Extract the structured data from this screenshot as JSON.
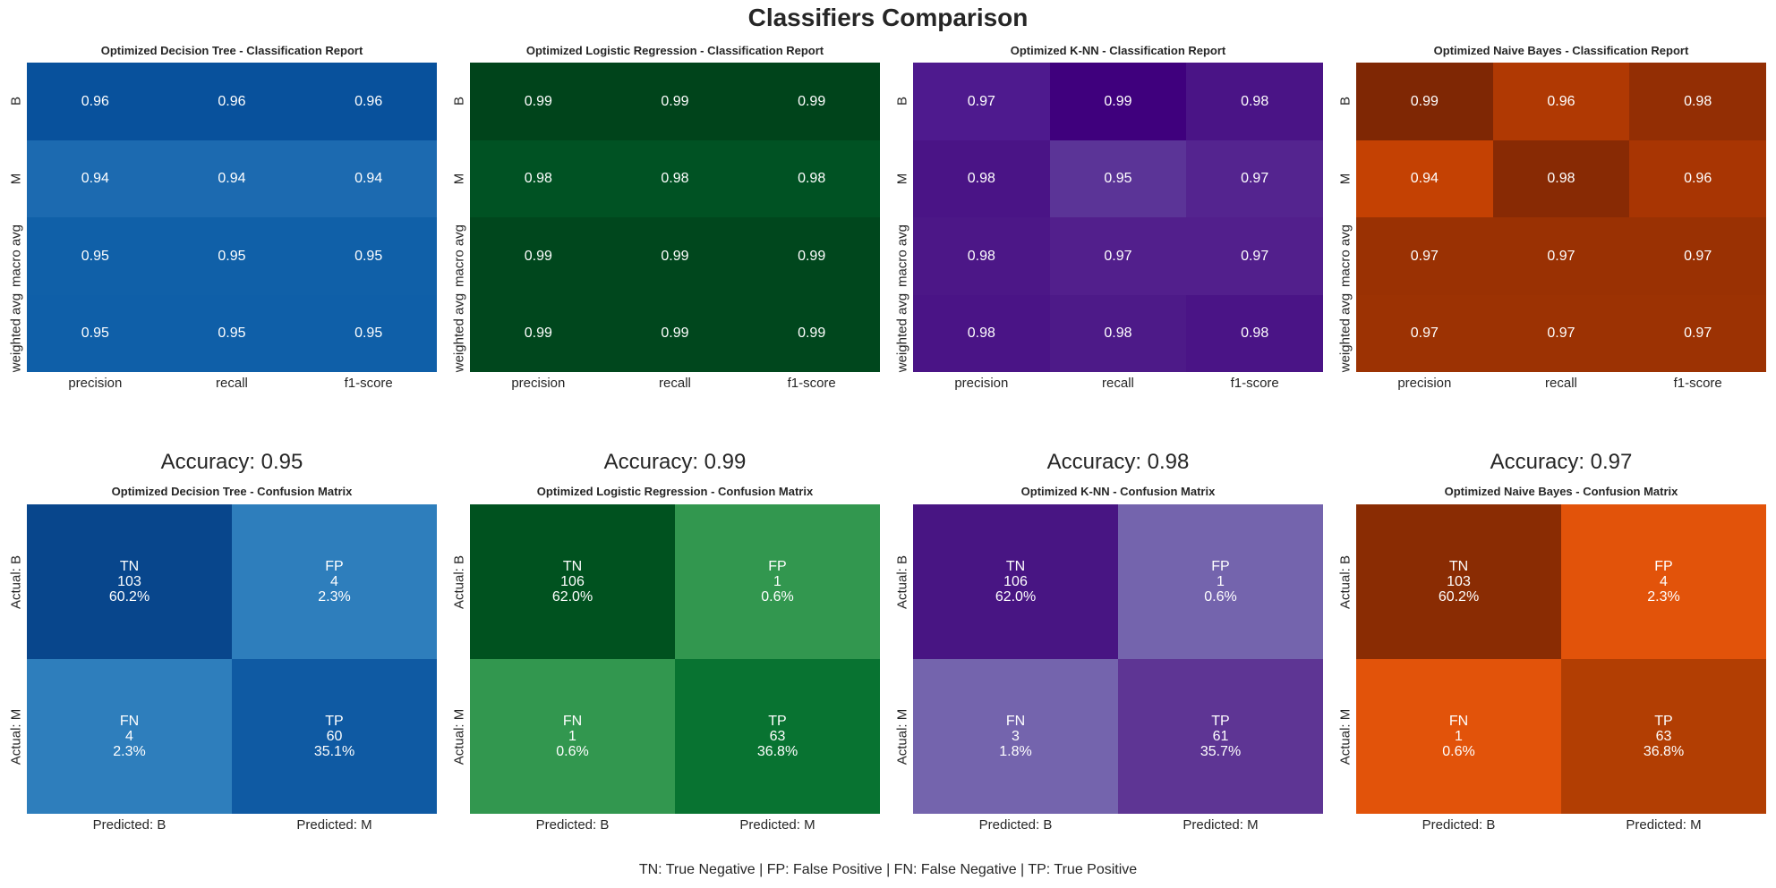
{
  "title": "Classifiers Comparison",
  "footer": "TN: True Negative | FP: False Positive | FN: False Negative | TP: True Positive",
  "chart_data": [
    {
      "type": "heatmap",
      "title": "Optimized Decision Tree - Classification Report",
      "x_labels": [
        "precision",
        "recall",
        "f1-score"
      ],
      "y_labels": [
        "B",
        "M",
        "macro avg",
        "weighted avg"
      ],
      "values": [
        [
          0.96,
          0.96,
          0.96
        ],
        [
          0.94,
          0.94,
          0.94
        ],
        [
          0.95,
          0.95,
          0.95
        ],
        [
          0.95,
          0.95,
          0.95
        ]
      ],
      "colors": [
        [
          "#08519c",
          "#08519c",
          "#08519c"
        ],
        [
          "#1c6ab0",
          "#1c6ab0",
          "#1c6ab0"
        ],
        [
          "#1060a8",
          "#1060a8",
          "#1060a8"
        ],
        [
          "#0f5fa8",
          "#0f5fa8",
          "#0f5fa8"
        ]
      ]
    },
    {
      "type": "heatmap",
      "title": "Optimized Logistic Regression - Classification Report",
      "x_labels": [
        "precision",
        "recall",
        "f1-score"
      ],
      "y_labels": [
        "B",
        "M",
        "macro avg",
        "weighted avg"
      ],
      "values": [
        [
          0.99,
          0.99,
          0.99
        ],
        [
          0.98,
          0.98,
          0.98
        ],
        [
          0.99,
          0.99,
          0.99
        ],
        [
          0.99,
          0.99,
          0.99
        ]
      ],
      "colors": [
        [
          "#00441b",
          "#00441b",
          "#00441b"
        ],
        [
          "#005223",
          "#005223",
          "#005223"
        ],
        [
          "#00471d",
          "#00471d",
          "#00471d"
        ],
        [
          "#00471d",
          "#00471d",
          "#00471d"
        ]
      ]
    },
    {
      "type": "heatmap",
      "title": "Optimized K-NN - Classification Report",
      "x_labels": [
        "precision",
        "recall",
        "f1-score"
      ],
      "y_labels": [
        "B",
        "M",
        "macro avg",
        "weighted avg"
      ],
      "values": [
        [
          0.97,
          0.99,
          0.98
        ],
        [
          0.98,
          0.95,
          0.97
        ],
        [
          0.98,
          0.97,
          0.97
        ],
        [
          0.98,
          0.98,
          0.98
        ]
      ],
      "colors": [
        [
          "#4e1a8e",
          "#3f007d",
          "#4a1486"
        ],
        [
          "#4a1486",
          "#5b3497",
          "#54248f"
        ],
        [
          "#4c1787",
          "#521f8c",
          "#521f8c"
        ],
        [
          "#4a1486",
          "#4d1a88",
          "#4a1486"
        ]
      ]
    },
    {
      "type": "heatmap",
      "title": "Optimized Naive Bayes - Classification Report",
      "x_labels": [
        "precision",
        "recall",
        "f1-score"
      ],
      "y_labels": [
        "B",
        "M",
        "macro avg",
        "weighted avg"
      ],
      "values": [
        [
          0.99,
          0.96,
          0.98
        ],
        [
          0.94,
          0.98,
          0.96
        ],
        [
          0.97,
          0.97,
          0.97
        ],
        [
          0.97,
          0.97,
          0.97
        ]
      ],
      "colors": [
        [
          "#7f2704",
          "#b03903",
          "#932e04"
        ],
        [
          "#c44103",
          "#882a04",
          "#a83503"
        ],
        [
          "#9a3103",
          "#9a3103",
          "#9a3103"
        ],
        [
          "#9c3203",
          "#9c3203",
          "#9c3203"
        ]
      ]
    }
  ],
  "confusion": [
    {
      "accuracy": "Accuracy: 0.95",
      "title": "Optimized Decision Tree - Confusion Matrix",
      "x_labels": [
        "Predicted: B",
        "Predicted: M"
      ],
      "y_labels": [
        "Actual: B",
        "Actual: M"
      ],
      "cells": [
        [
          {
            "label": "TN",
            "count": "103",
            "pct": "60.2%",
            "color": "#08468c"
          },
          {
            "label": "FP",
            "count": "4",
            "pct": "2.3%",
            "color": "#2e7ebc"
          }
        ],
        [
          {
            "label": "FN",
            "count": "4",
            "pct": "2.3%",
            "color": "#2e7ebc"
          },
          {
            "label": "TP",
            "count": "60",
            "pct": "35.1%",
            "color": "#0f5aa3"
          }
        ]
      ]
    },
    {
      "accuracy": "Accuracy: 0.99",
      "title": "Optimized Logistic Regression - Confusion Matrix",
      "x_labels": [
        "Predicted: B",
        "Predicted: M"
      ],
      "y_labels": [
        "Actual: B",
        "Actual: M"
      ],
      "cells": [
        [
          {
            "label": "TN",
            "count": "106",
            "pct": "62.0%",
            "color": "#00521f"
          },
          {
            "label": "FP",
            "count": "1",
            "pct": "0.6%",
            "color": "#32974f"
          }
        ],
        [
          {
            "label": "FN",
            "count": "1",
            "pct": "0.6%",
            "color": "#32974f"
          },
          {
            "label": "TP",
            "count": "63",
            "pct": "36.8%",
            "color": "#087331"
          }
        ]
      ]
    },
    {
      "accuracy": "Accuracy: 0.98",
      "title": "Optimized K-NN - Confusion Matrix",
      "x_labels": [
        "Predicted: B",
        "Predicted: M"
      ],
      "y_labels": [
        "Actual: B",
        "Actual: M"
      ],
      "cells": [
        [
          {
            "label": "TN",
            "count": "106",
            "pct": "62.0%",
            "color": "#481583"
          },
          {
            "label": "FP",
            "count": "1",
            "pct": "0.6%",
            "color": "#7464ad"
          }
        ],
        [
          {
            "label": "FN",
            "count": "3",
            "pct": "1.8%",
            "color": "#7464ad"
          },
          {
            "label": "TP",
            "count": "61",
            "pct": "35.7%",
            "color": "#5e3594"
          }
        ]
      ]
    },
    {
      "accuracy": "Accuracy: 0.97",
      "title": "Optimized Naive Bayes - Confusion Matrix",
      "x_labels": [
        "Predicted: B",
        "Predicted: M"
      ],
      "y_labels": [
        "Actual: B",
        "Actual: M"
      ],
      "cells": [
        [
          {
            "label": "TN",
            "count": "103",
            "pct": "60.2%",
            "color": "#8a2c03"
          },
          {
            "label": "FP",
            "count": "4",
            "pct": "2.3%",
            "color": "#e2530a"
          }
        ],
        [
          {
            "label": "FN",
            "count": "1",
            "pct": "0.6%",
            "color": "#e2530a"
          },
          {
            "label": "TP",
            "count": "63",
            "pct": "36.8%",
            "color": "#b23e03"
          }
        ]
      ]
    }
  ]
}
